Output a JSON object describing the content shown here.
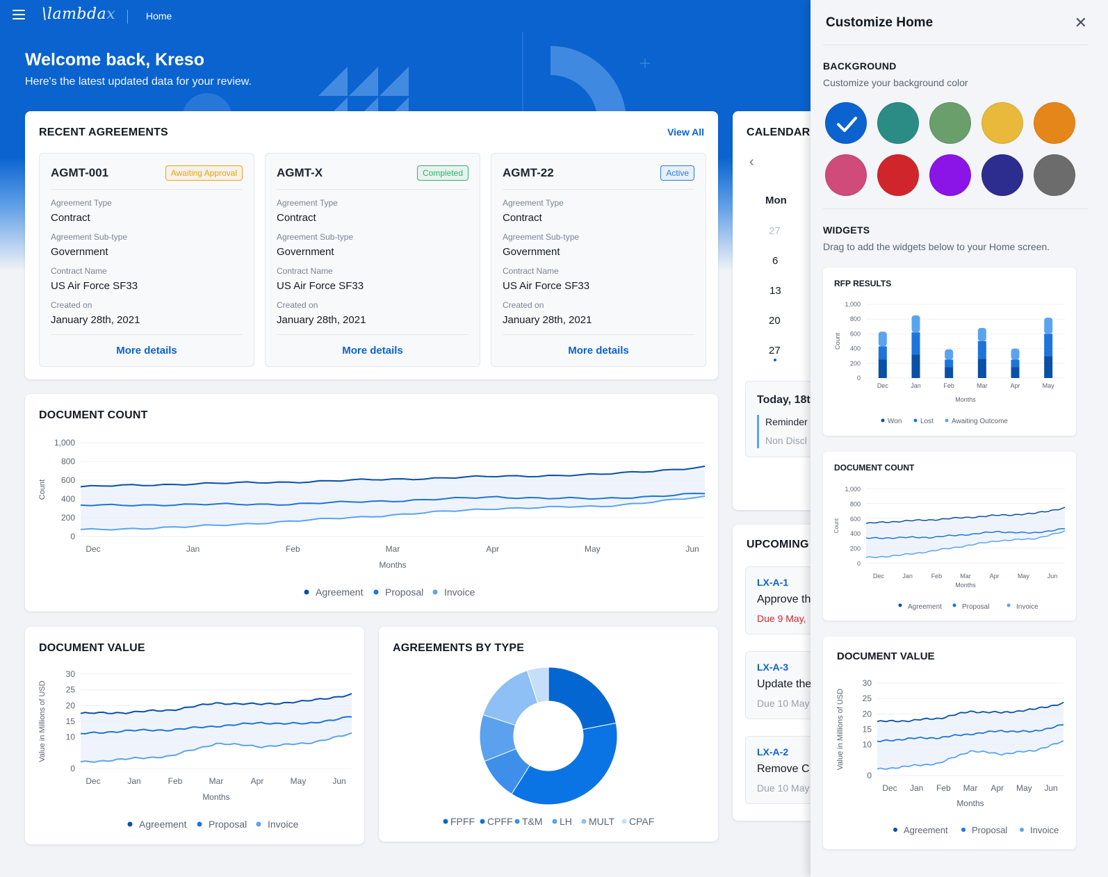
{
  "app": {
    "logo_main": "\\lambda",
    "logo_accent": "x",
    "breadcrumb": "Home"
  },
  "welcome": {
    "title": "Welcome back, Kreso",
    "subtitle": "Here's the latest updated data for your review."
  },
  "recent_agreements": {
    "title": "RECENT AGREEMENTS",
    "view_all": "View All",
    "labels": {
      "type": "Agreement Type",
      "subtype": "Agreement Sub-type",
      "contract": "Contract Name",
      "created": "Created on",
      "more": "More details"
    },
    "items": [
      {
        "id": "AGMT-001",
        "status": "Awaiting Approval",
        "status_color": "#e8a317",
        "type": "Contract",
        "subtype": "Government",
        "contract": "US Air Force SF33",
        "created": "January 28th, 2021"
      },
      {
        "id": "AGMT-X",
        "status": "Completed",
        "status_color": "#2fb36a",
        "type": "Contract",
        "subtype": "Government",
        "contract": "US Air Force SF33",
        "created": "January 28th, 2021"
      },
      {
        "id": "AGMT-22",
        "status": "Active",
        "status_color": "#2b7bd9",
        "type": "Contract",
        "subtype": "Government",
        "contract": "US Air Force SF33",
        "created": "January 28th, 2021"
      }
    ]
  },
  "calendar": {
    "title": "CALENDAR",
    "prev_icon": "chevron-left-icon",
    "weekday": "Mon",
    "days": [
      "27",
      "6",
      "13",
      "20",
      "27"
    ],
    "today_title": "Today, 18t",
    "reminder_label": "Reminder",
    "reminder_text": "Non Discl"
  },
  "upcoming": {
    "title": "UPCOMING",
    "items": [
      {
        "id": "LX-A-1",
        "title": "Approve th",
        "due": "Due 9 May,",
        "overdue": true
      },
      {
        "id": "LX-A-3",
        "title": "Update the",
        "due": "Due 10 May",
        "overdue": false
      },
      {
        "id": "LX-A-2",
        "title": "Remove C",
        "due": "Due 10 May",
        "overdue": false
      }
    ]
  },
  "colors": {
    "agreement": "#0a4fa8",
    "proposal": "#1d74db",
    "invoice": "#5aa4ef"
  },
  "document_count": {
    "title": "DOCUMENT COUNT",
    "chart_data": {
      "type": "line",
      "xlabel": "Months",
      "ylabel": "Count",
      "ylim": [
        0,
        1000
      ],
      "yticks": [
        "0",
        "200",
        "400",
        "600",
        "800",
        "1,000"
      ],
      "x": [
        "Dec",
        "Jan",
        "Feb",
        "Mar",
        "Apr",
        "May",
        "Jun"
      ],
      "series": [
        {
          "name": "Agreement",
          "values": [
            530,
            560,
            580,
            610,
            640,
            660,
            740
          ]
        },
        {
          "name": "Proposal",
          "values": [
            330,
            340,
            345,
            380,
            420,
            400,
            460
          ]
        },
        {
          "name": "Invoice",
          "values": [
            70,
            100,
            160,
            230,
            300,
            320,
            420
          ]
        }
      ],
      "legend": "bottom"
    }
  },
  "document_value": {
    "title": "DOCUMENT VALUE",
    "chart_data": {
      "type": "line",
      "xlabel": "Months",
      "ylabel": "Value in Millions of USD",
      "ylim": [
        0,
        30
      ],
      "yticks": [
        "0",
        "10",
        "15",
        "20",
        "25",
        "30"
      ],
      "x": [
        "Dec",
        "Jan",
        "Feb",
        "Mar",
        "Apr",
        "May",
        "Jun"
      ],
      "series": [
        {
          "name": "Agreement",
          "values": [
            17.5,
            17.8,
            18.6,
            20.8,
            20.4,
            21.4,
            23.5
          ]
        },
        {
          "name": "Proposal",
          "values": [
            11,
            12,
            12.3,
            13.5,
            14.5,
            14.2,
            16.5
          ]
        },
        {
          "name": "Invoice",
          "values": [
            2,
            3,
            4,
            8,
            7,
            8,
            11
          ]
        }
      ],
      "legend": "bottom"
    }
  },
  "agreements_by_type": {
    "title": "AGREEMENTS BY TYPE",
    "chart_data": {
      "type": "pie",
      "labels": [
        "FPFF",
        "CPFF",
        "T&M",
        "LH",
        "MULT",
        "CPAF"
      ],
      "values": [
        22,
        37,
        10,
        11,
        15,
        5
      ],
      "colors": [
        "#0466d1",
        "#0b74e4",
        "#3e8fe9",
        "#5ba1ee",
        "#8ebff5",
        "#c6def9"
      ]
    }
  },
  "customize": {
    "title": "Customize Home",
    "close_icon": "close-icon",
    "background_title": "BACKGROUND",
    "background_sub": "Customize your background color",
    "swatches": [
      "#0a63cf",
      "#2b8c86",
      "#6a9e6b",
      "#e8b93a",
      "#e5861a",
      "#cf4b79",
      "#d0262b",
      "#8b14e6",
      "#2c2d8f",
      "#6c6c6c"
    ],
    "selected_swatch": 0,
    "widgets_title": "WIDGETS",
    "widgets_sub": "Drag to add the widgets below to your Home screen."
  },
  "rfp_results": {
    "title": "RFP RESULTS",
    "chart_data": {
      "type": "bar",
      "stacked": true,
      "xlabel": "Months",
      "ylabel": "Count",
      "ylim": [
        0,
        1000
      ],
      "yticks": [
        "0",
        "200",
        "400",
        "600",
        "800",
        "1,000"
      ],
      "categories": [
        "Dec",
        "Jan",
        "Feb",
        "Mar",
        "Apr",
        "May"
      ],
      "series": [
        {
          "name": "Won",
          "values": [
            250,
            320,
            150,
            260,
            150,
            300
          ]
        },
        {
          "name": "Lost",
          "values": [
            180,
            300,
            100,
            240,
            100,
            300
          ]
        },
        {
          "name": "Awaiting Outcome",
          "values": [
            200,
            230,
            140,
            180,
            150,
            220
          ]
        }
      ],
      "colors": [
        "#0a4fa8",
        "#1d74db",
        "#5aa4ef"
      ],
      "legend": "bottom"
    }
  },
  "widget_doc_count": {
    "title": "DOCUMENT COUNT",
    "chart_data": {
      "type": "line",
      "xlabel": "Months",
      "ylabel": "Count",
      "ylim": [
        0,
        1000
      ],
      "yticks": [
        "0",
        "200",
        "400",
        "600",
        "800",
        "1,000"
      ],
      "x": [
        "Dec",
        "Jan",
        "Feb",
        "Mar",
        "Apr",
        "May",
        "Jun"
      ],
      "series": [
        {
          "name": "Agreement",
          "values": [
            530,
            560,
            580,
            610,
            640,
            660,
            740
          ]
        },
        {
          "name": "Proposal",
          "values": [
            330,
            340,
            345,
            380,
            420,
            400,
            460
          ]
        },
        {
          "name": "Invoice",
          "values": [
            70,
            100,
            160,
            230,
            300,
            320,
            420
          ]
        }
      ],
      "legend": "bottom"
    }
  },
  "widget_doc_value": {
    "title": "DOCUMENT VALUE",
    "chart_data": {
      "type": "line",
      "xlabel": "Months",
      "ylabel": "Value in Millions of USD",
      "ylim": [
        0,
        30
      ],
      "yticks": [
        "0",
        "10",
        "15",
        "20",
        "25",
        "30"
      ],
      "x": [
        "Dec",
        "Jan",
        "Feb",
        "Mar",
        "Apr",
        "May",
        "Jun"
      ],
      "series": [
        {
          "name": "Agreement",
          "values": [
            17.5,
            17.8,
            18.6,
            20.8,
            20.4,
            21.4,
            23.5
          ]
        },
        {
          "name": "Proposal",
          "values": [
            11,
            12,
            12.3,
            13.5,
            14.5,
            14.2,
            16.5
          ]
        },
        {
          "name": "Invoice",
          "values": [
            2,
            3,
            4,
            8,
            7,
            8,
            11
          ]
        }
      ],
      "legend": "bottom"
    }
  }
}
